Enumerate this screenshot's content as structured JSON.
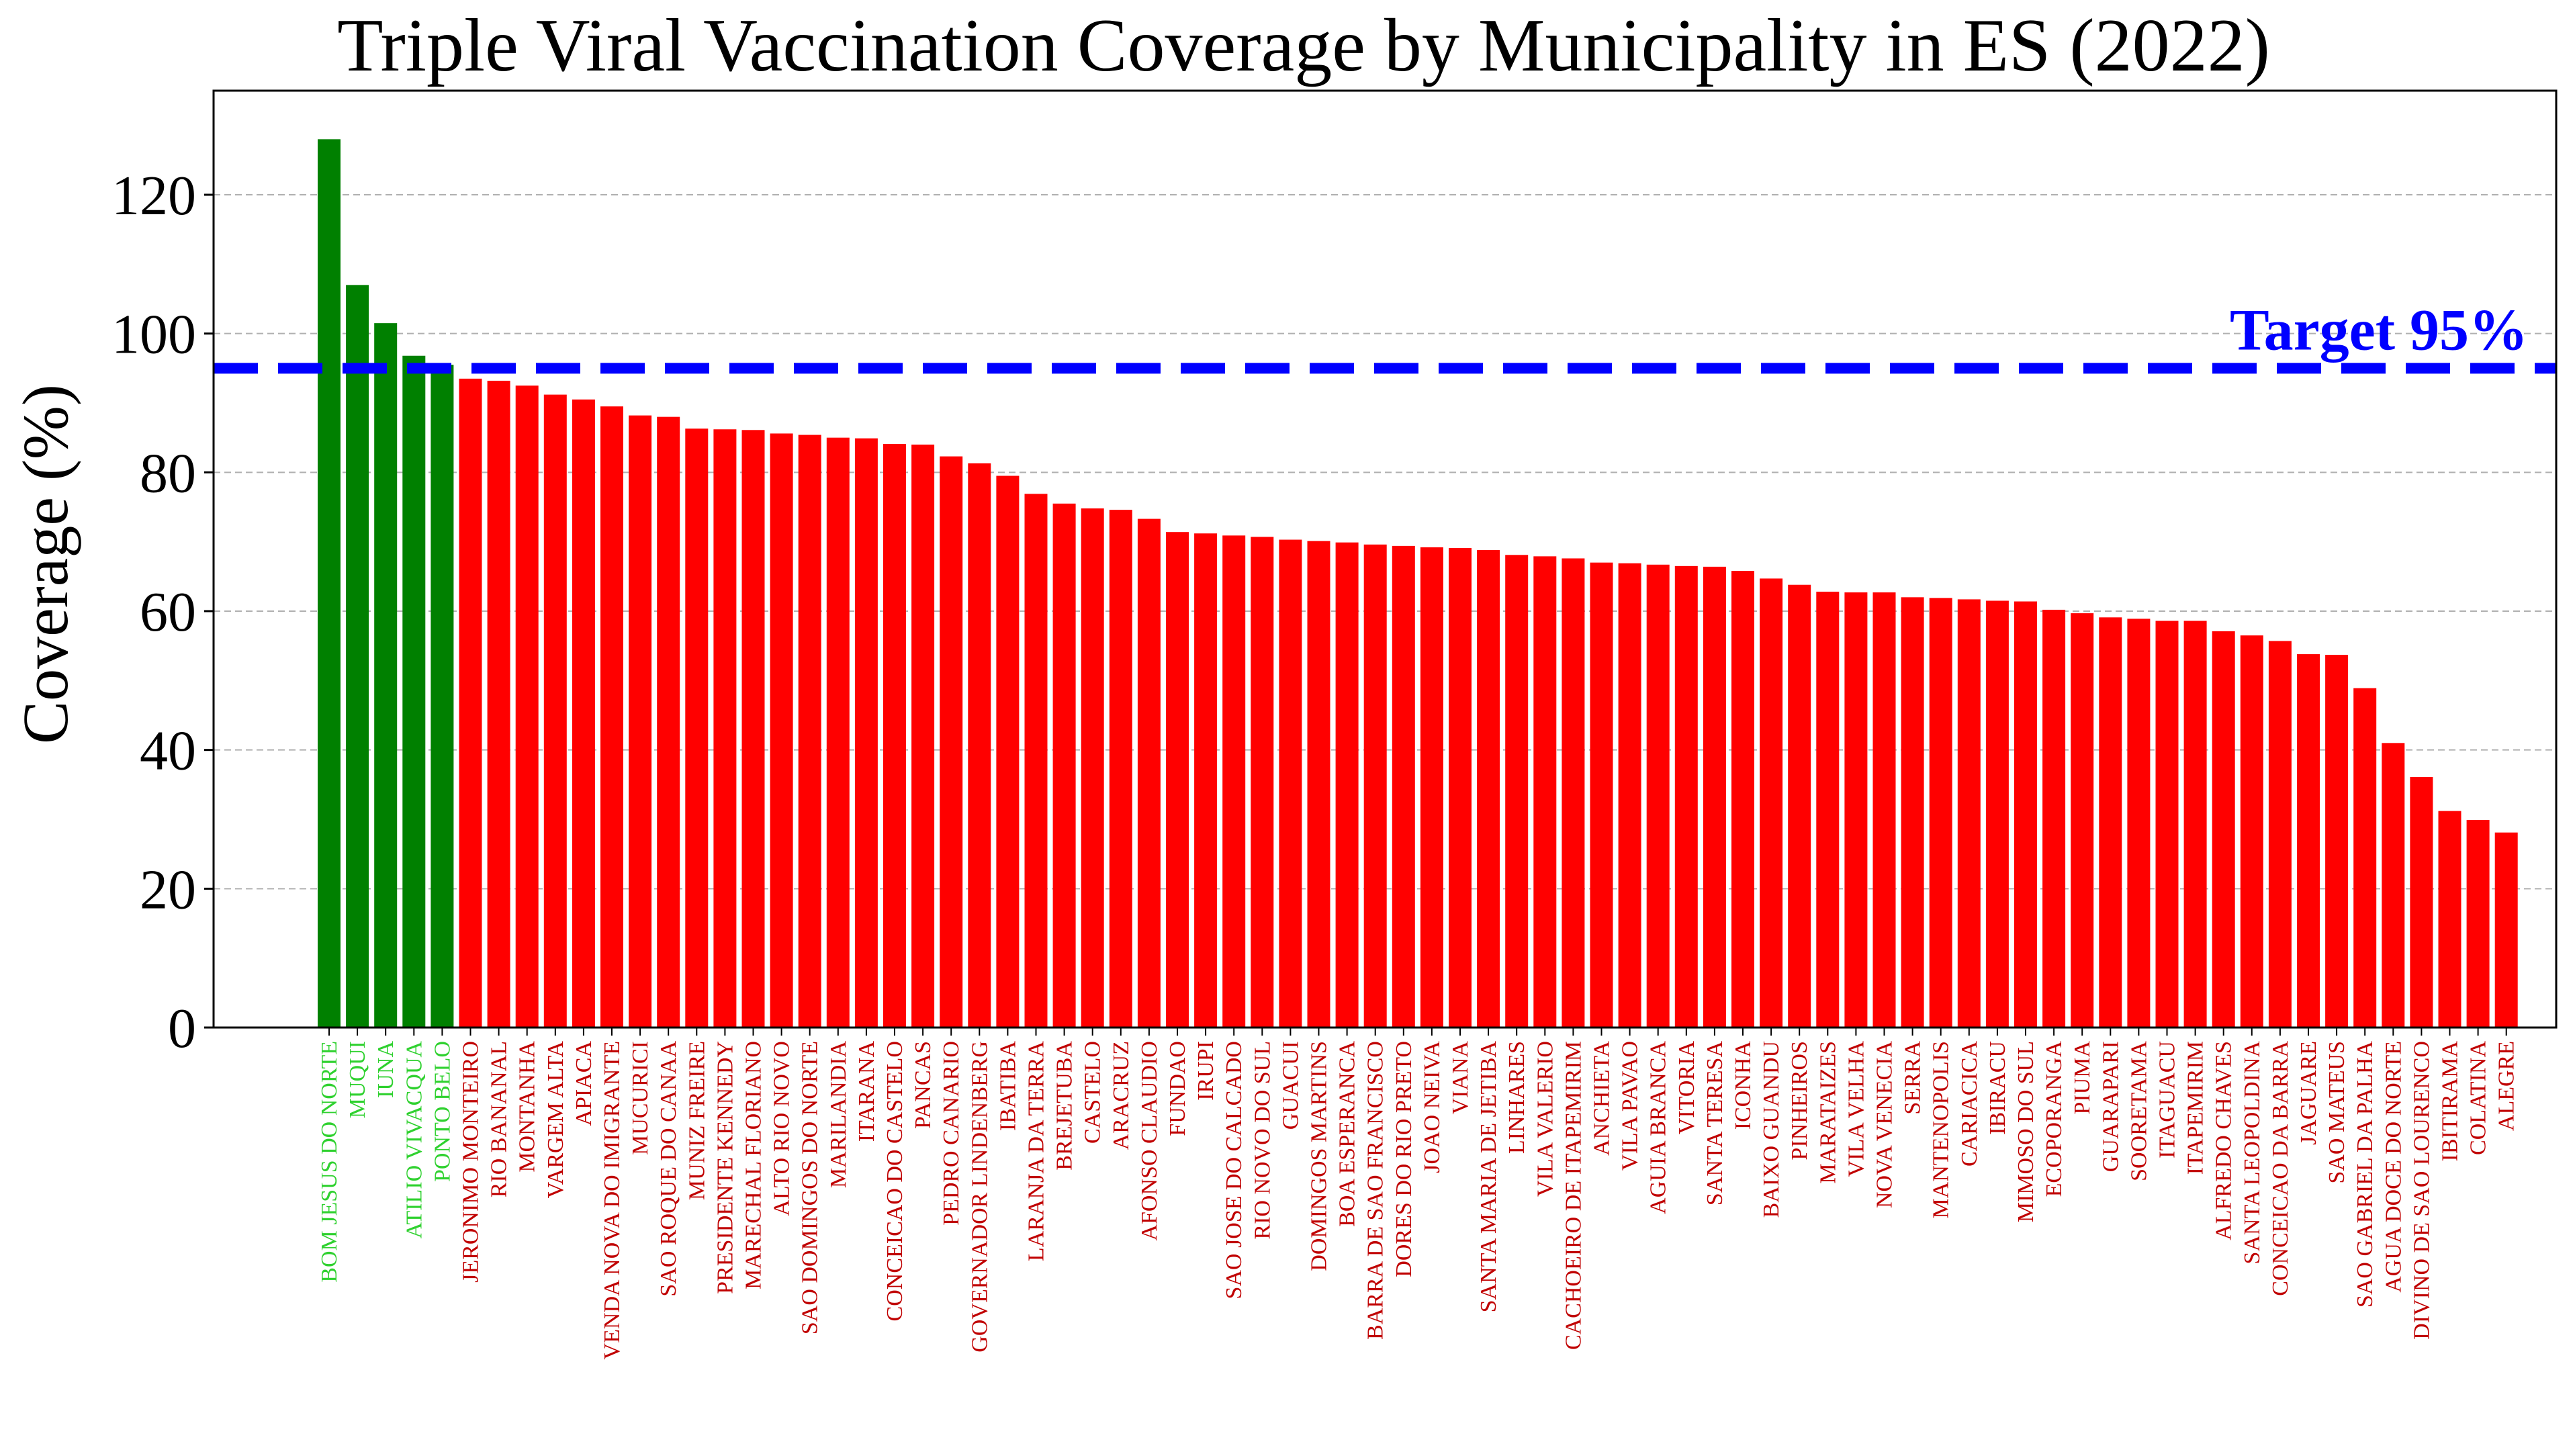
{
  "chart_data": {
    "type": "bar",
    "title": "Triple Viral Vaccination Coverage by Municipality in ES (2022)",
    "xlabel": "",
    "ylabel": "Coverage (%)",
    "ylim": [
      0,
      135
    ],
    "yticks": [
      0,
      20,
      40,
      60,
      80,
      100,
      120
    ],
    "grid": "y-dashed",
    "target": {
      "value": 95,
      "label": "Target 95%",
      "color": "#0000ff"
    },
    "colors": {
      "above_target": "#008000",
      "below_target": "#ff0000",
      "label_above": "#2fd12f",
      "label_below": "#c00000"
    },
    "categories": [
      "BOM JESUS DO NORTE",
      "MUQUI",
      "IUNA",
      "ATILIO VIVACQUA",
      "PONTO BELO",
      "JERONIMO MONTEIRO",
      "RIO BANANAL",
      "MONTANHA",
      "VARGEM ALTA",
      "APIACA",
      "VENDA NOVA DO IMIGRANTE",
      "MUCURICI",
      "SAO ROQUE DO CANAA",
      "MUNIZ FREIRE",
      "PRESIDENTE KENNEDY",
      "MARECHAL FLORIANO",
      "ALTO RIO NOVO",
      "SAO DOMINGOS DO NORTE",
      "MARILANDIA",
      "ITARANA",
      "CONCEICAO DO CASTELO",
      "PANCAS",
      "PEDRO CANARIO",
      "GOVERNADOR LINDENBERG",
      "IBATIBA",
      "LARANJA DA TERRA",
      "BREJETUBA",
      "CASTELO",
      "ARACRUZ",
      "AFONSO CLAUDIO",
      "FUNDAO",
      "IRUPI",
      "SAO JOSE DO CALCADO",
      "RIO NOVO DO SUL",
      "GUACUI",
      "DOMINGOS MARTINS",
      "BOA ESPERANCA",
      "BARRA DE SAO FRANCISCO",
      "DORES DO RIO PRETO",
      "JOAO NEIVA",
      "VIANA",
      "SANTA MARIA DE JETIBA",
      "LINHARES",
      "VILA VALERIO",
      "CACHOEIRO DE ITAPEMIRIM",
      "ANCHIETA",
      "VILA PAVAO",
      "AGUIA BRANCA",
      "VITORIA",
      "SANTA TERESA",
      "ICONHA",
      "BAIXO GUANDU",
      "PINHEIROS",
      "MARATAIZES",
      "VILA VELHA",
      "NOVA VENECIA",
      "SERRA",
      "MANTENOPOLIS",
      "CARIACICA",
      "IBIRACU",
      "MIMOSO DO SUL",
      "ECOPORANGA",
      "PIUMA",
      "GUARAPARI",
      "SOORETAMA",
      "ITAGUACU",
      "ITAPEMIRIM",
      "ALFREDO CHAVES",
      "SANTA LEOPOLDINA",
      "CONCEICAO DA BARRA",
      "JAGUARE",
      "SAO MATEUS",
      "SAO GABRIEL DA PALHA",
      "AGUA DOCE DO NORTE",
      "DIVINO DE SAO LOURENCO",
      "IBITIRAMA",
      "COLATINA",
      "ALEGRE"
    ],
    "values": [
      128.0,
      107.0,
      101.5,
      96.8,
      95.5,
      93.5,
      93.2,
      92.5,
      91.2,
      90.5,
      89.5,
      88.2,
      88.0,
      86.3,
      86.2,
      86.1,
      85.6,
      85.4,
      85.0,
      84.9,
      84.1,
      84.0,
      82.3,
      81.3,
      79.5,
      76.9,
      75.5,
      74.8,
      74.6,
      73.3,
      71.4,
      71.2,
      70.9,
      70.7,
      70.3,
      70.1,
      69.9,
      69.6,
      69.4,
      69.2,
      69.1,
      68.8,
      68.1,
      67.9,
      67.6,
      67.0,
      66.9,
      66.7,
      66.5,
      66.4,
      65.8,
      64.7,
      63.8,
      62.8,
      62.7,
      62.7,
      62.0,
      61.9,
      61.7,
      61.5,
      61.4,
      60.2,
      59.7,
      59.1,
      58.9,
      58.6,
      58.6,
      57.1,
      56.5,
      55.7,
      53.8,
      53.7,
      48.9,
      41.0,
      36.1,
      31.2,
      29.9,
      28.1
    ]
  }
}
